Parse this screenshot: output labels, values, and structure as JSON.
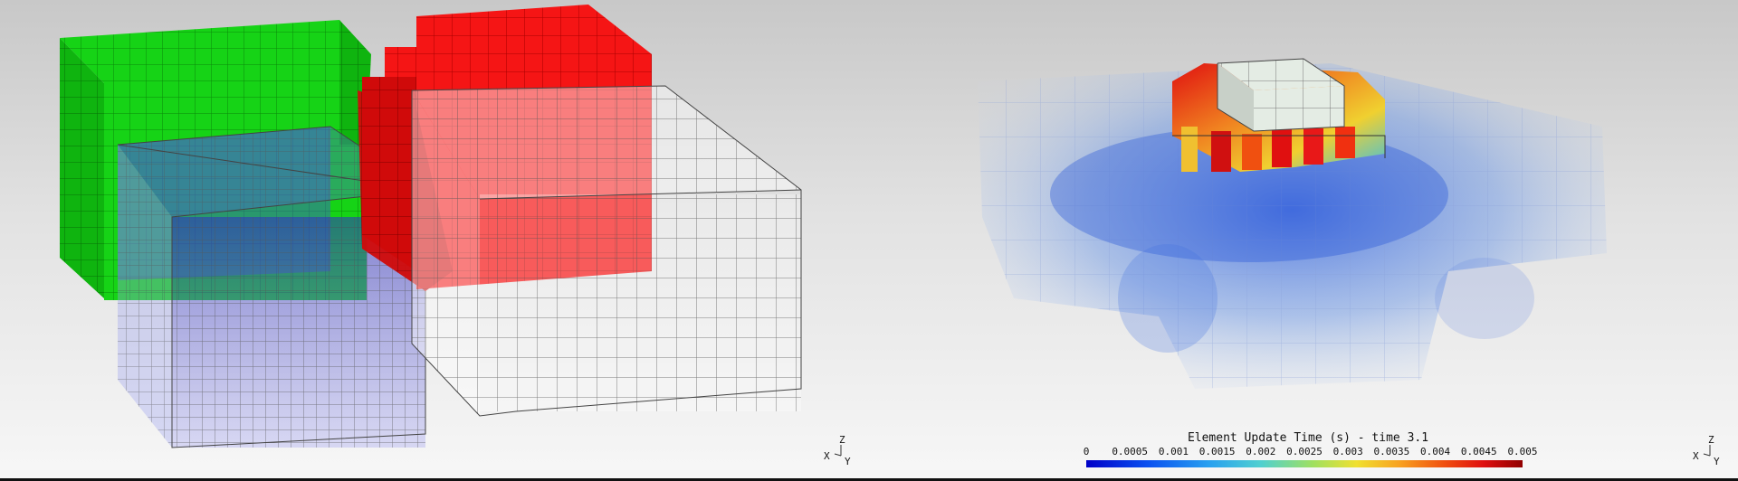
{
  "left_view": {
    "axes": {
      "z": "Z",
      "x": "X",
      "y": "Y"
    },
    "colors": {
      "green_block": "#10d010",
      "red_block": "#f01010",
      "blue_block": "#5050e0",
      "wire": "#555555"
    }
  },
  "right_view": {
    "axes": {
      "z": "Z",
      "x": "X",
      "y": "Y"
    },
    "colorbar": {
      "title": "Element Update Time (s) - time 3.1",
      "ticks": [
        "0",
        "0.0005",
        "0.001",
        "0.0015",
        "0.002",
        "0.0025",
        "0.003",
        "0.0035",
        "0.004",
        "0.0045",
        "0.005"
      ],
      "min_color": "#0000c8",
      "max_color": "#900000"
    }
  }
}
